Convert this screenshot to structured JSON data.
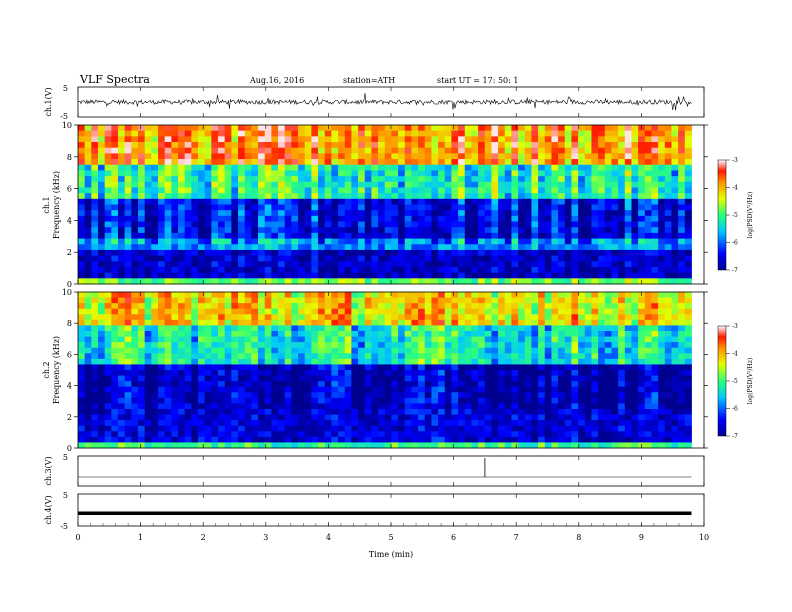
{
  "header": {
    "title": "VLF  Spectra",
    "date": "Aug.16, 2016",
    "station": "station=ATH",
    "start": "start  UT  =    17: 50: 1"
  },
  "chart_data": {
    "type": "heatmap",
    "title": "VLF  Spectra",
    "xlabel": "Time  (min)",
    "xlim": [
      0,
      10
    ],
    "x_ticks": [
      "0",
      "1",
      "2",
      "3",
      "4",
      "5",
      "6",
      "7",
      "8",
      "9",
      "10"
    ],
    "data_end_min": 9.8,
    "panels": [
      {
        "id": "ch1-wave",
        "type": "line",
        "ylabel": "ch.1(V)",
        "ylim": [
          -5,
          5
        ],
        "y_ticks": [
          "5",
          "-5"
        ],
        "baseline_v": 0,
        "noise_amplitude_v": 1.5
      },
      {
        "id": "ch1-spec",
        "type": "heatmap",
        "ylabel_lines": [
          "ch.1",
          "Frequency  (kHz)"
        ],
        "ylim": [
          0,
          10
        ],
        "y_ticks": [
          "0",
          "2",
          "4",
          "6",
          "8",
          "10"
        ],
        "colorbar": {
          "label": "log(PSD(V²/Hz)",
          "range": [
            -7,
            -3
          ],
          "ticks": [
            "-3",
            "-4",
            "-5",
            "-6",
            "-7"
          ]
        },
        "bands_khz": [
          {
            "from": 0,
            "to": 0.3,
            "log_psd": -4.8
          },
          {
            "from": 0.3,
            "to": 2.2,
            "log_psd": -6.7
          },
          {
            "from": 2.2,
            "to": 3.0,
            "log_psd": -5.8
          },
          {
            "from": 3.0,
            "to": 5.5,
            "log_psd": -6.5
          },
          {
            "from": 5.5,
            "to": 7.5,
            "log_psd": -5.2
          },
          {
            "from": 7.5,
            "to": 10,
            "log_psd": -3.8
          }
        ]
      },
      {
        "id": "ch2-spec",
        "type": "heatmap",
        "ylabel_lines": [
          "ch.2",
          "Frequency  (kHz)"
        ],
        "ylim": [
          0,
          10
        ],
        "y_ticks": [
          "0",
          "2",
          "4",
          "6",
          "8",
          "10"
        ],
        "colorbar": {
          "label": "log(PSD(V²/Hz)",
          "range": [
            -7,
            -3
          ],
          "ticks": [
            "-3",
            "-4",
            "-5",
            "-6",
            "-7"
          ]
        },
        "bands_khz": [
          {
            "from": 0,
            "to": 0.3,
            "log_psd": -5.0
          },
          {
            "from": 0.3,
            "to": 2.5,
            "log_psd": -6.6
          },
          {
            "from": 2.5,
            "to": 5.5,
            "log_psd": -6.8
          },
          {
            "from": 5.5,
            "to": 8.0,
            "log_psd": -5.3
          },
          {
            "from": 8.0,
            "to": 10,
            "log_psd": -4.2
          }
        ]
      },
      {
        "id": "ch3-wave",
        "type": "line",
        "ylabel": "ch.3(V)",
        "ylim": [
          -5,
          5
        ],
        "y_ticks": [
          "5"
        ],
        "baseline_v": 0,
        "spike_time_min": 6.5
      },
      {
        "id": "ch4-wave",
        "type": "line",
        "ylabel": "ch.4(V)",
        "ylim": [
          -5,
          5
        ],
        "y_ticks": [
          "5",
          "-5"
        ],
        "baseline_v": -1
      }
    ]
  }
}
